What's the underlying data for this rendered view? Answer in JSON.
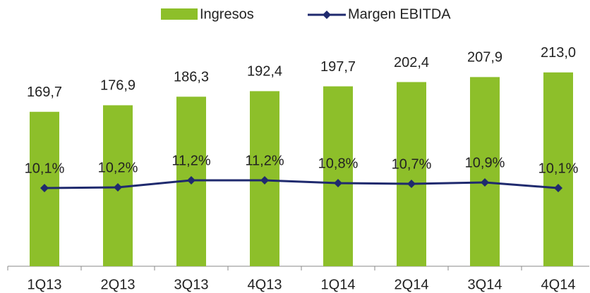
{
  "chart_data": {
    "type": "bar_line",
    "categories": [
      "1Q13",
      "2Q13",
      "3Q13",
      "4Q13",
      "1Q14",
      "2Q14",
      "3Q14",
      "4Q14"
    ],
    "series": [
      {
        "name": "Ingresos",
        "type": "bar",
        "color": "#8dbf2a",
        "values": [
          169.7,
          176.9,
          186.3,
          192.4,
          197.7,
          202.4,
          207.9,
          213.0
        ],
        "value_labels": [
          "169,7",
          "176,9",
          "186,3",
          "192,4",
          "197,7",
          "202,4",
          "207,9",
          "213,0"
        ]
      },
      {
        "name": "Margen EBITDA",
        "type": "line",
        "axis": "y2",
        "color": "#1f2a6e",
        "values": [
          10.1,
          10.2,
          11.2,
          11.2,
          10.8,
          10.7,
          10.9,
          10.1
        ],
        "value_labels": [
          "10,1%",
          "10,2%",
          "11,2%",
          "11,2%",
          "10,8%",
          "10,7%",
          "10,9%",
          "10,1%"
        ]
      }
    ],
    "ylim": [
      0,
      250
    ],
    "y2lim": [
      -1,
      31.3
    ],
    "legend": "top"
  }
}
